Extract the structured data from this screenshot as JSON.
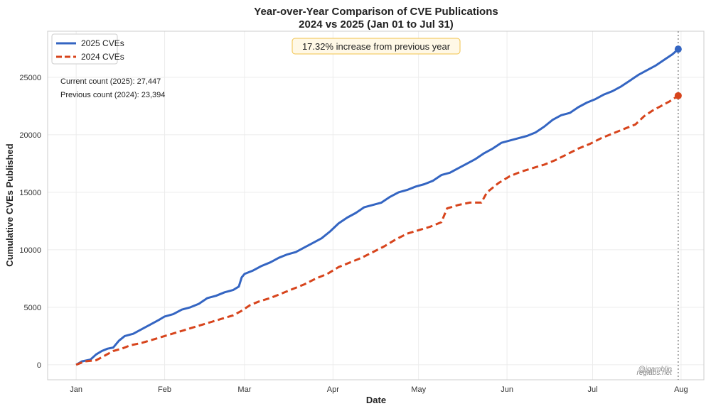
{
  "chart_data": {
    "type": "line",
    "title": "Year-over-Year Comparison of CVE Publications",
    "subtitle": "2024 vs 2025 (Jan 01 to Jul 31)",
    "xlabel": "Date",
    "ylabel": "Cumulative CVEs Published",
    "x_ticks": [
      {
        "label": "Jan",
        "date": "2025-01-01"
      },
      {
        "label": "Feb",
        "date": "2025-02-01"
      },
      {
        "label": "Mar",
        "date": "2025-03-01"
      },
      {
        "label": "Apr",
        "date": "2025-04-01"
      },
      {
        "label": "May",
        "date": "2025-05-01"
      },
      {
        "label": "Jun",
        "date": "2025-06-01"
      },
      {
        "label": "Jul",
        "date": "2025-07-01"
      },
      {
        "label": "Aug",
        "date": "2025-08-01"
      }
    ],
    "xlim": [
      "2024-12-22",
      "2025-08-09"
    ],
    "ylim": [
      -1300,
      29000
    ],
    "y_ticks": [
      0,
      5000,
      10000,
      15000,
      20000,
      25000
    ],
    "grid": true,
    "legend": "top-left",
    "vline_date": "2025-07-31",
    "series": [
      {
        "name": "2025 CVEs",
        "color": "#3465c2",
        "style": "solid",
        "points": [
          [
            "2025-01-01",
            0
          ],
          [
            "2025-01-03",
            300
          ],
          [
            "2025-01-06",
            450
          ],
          [
            "2025-01-08",
            900
          ],
          [
            "2025-01-10",
            1200
          ],
          [
            "2025-01-12",
            1400
          ],
          [
            "2025-01-14",
            1500
          ],
          [
            "2025-01-16",
            2100
          ],
          [
            "2025-01-18",
            2500
          ],
          [
            "2025-01-21",
            2700
          ],
          [
            "2025-01-24",
            3100
          ],
          [
            "2025-01-27",
            3500
          ],
          [
            "2025-01-30",
            3900
          ],
          [
            "2025-02-01",
            4200
          ],
          [
            "2025-02-04",
            4400
          ],
          [
            "2025-02-07",
            4800
          ],
          [
            "2025-02-10",
            5000
          ],
          [
            "2025-02-13",
            5300
          ],
          [
            "2025-02-16",
            5800
          ],
          [
            "2025-02-19",
            6000
          ],
          [
            "2025-02-22",
            6300
          ],
          [
            "2025-02-25",
            6500
          ],
          [
            "2025-02-27",
            6800
          ],
          [
            "2025-02-28",
            7600
          ],
          [
            "2025-03-01",
            7900
          ],
          [
            "2025-03-04",
            8200
          ],
          [
            "2025-03-07",
            8600
          ],
          [
            "2025-03-10",
            8900
          ],
          [
            "2025-03-13",
            9300
          ],
          [
            "2025-03-16",
            9600
          ],
          [
            "2025-03-19",
            9800
          ],
          [
            "2025-03-22",
            10200
          ],
          [
            "2025-03-25",
            10600
          ],
          [
            "2025-03-28",
            11000
          ],
          [
            "2025-03-31",
            11600
          ],
          [
            "2025-04-03",
            12300
          ],
          [
            "2025-04-06",
            12800
          ],
          [
            "2025-04-09",
            13200
          ],
          [
            "2025-04-12",
            13700
          ],
          [
            "2025-04-15",
            13900
          ],
          [
            "2025-04-18",
            14100
          ],
          [
            "2025-04-21",
            14600
          ],
          [
            "2025-04-24",
            15000
          ],
          [
            "2025-04-27",
            15200
          ],
          [
            "2025-04-30",
            15500
          ],
          [
            "2025-05-03",
            15700
          ],
          [
            "2025-05-06",
            16000
          ],
          [
            "2025-05-09",
            16500
          ],
          [
            "2025-05-12",
            16700
          ],
          [
            "2025-05-15",
            17100
          ],
          [
            "2025-05-18",
            17500
          ],
          [
            "2025-05-21",
            17900
          ],
          [
            "2025-05-24",
            18400
          ],
          [
            "2025-05-27",
            18800
          ],
          [
            "2025-05-30",
            19300
          ],
          [
            "2025-06-02",
            19500
          ],
          [
            "2025-06-05",
            19700
          ],
          [
            "2025-06-08",
            19900
          ],
          [
            "2025-06-11",
            20200
          ],
          [
            "2025-06-14",
            20700
          ],
          [
            "2025-06-17",
            21300
          ],
          [
            "2025-06-20",
            21700
          ],
          [
            "2025-06-23",
            21900
          ],
          [
            "2025-06-26",
            22400
          ],
          [
            "2025-06-29",
            22800
          ],
          [
            "2025-07-02",
            23100
          ],
          [
            "2025-07-05",
            23500
          ],
          [
            "2025-07-08",
            23800
          ],
          [
            "2025-07-11",
            24200
          ],
          [
            "2025-07-14",
            24700
          ],
          [
            "2025-07-17",
            25200
          ],
          [
            "2025-07-20",
            25600
          ],
          [
            "2025-07-23",
            26000
          ],
          [
            "2025-07-26",
            26500
          ],
          [
            "2025-07-29",
            27000
          ],
          [
            "2025-07-31",
            27447
          ]
        ],
        "end_value": 27447
      },
      {
        "name": "2024 CVEs",
        "color": "#d7441c",
        "style": "dashed",
        "points": [
          [
            "2025-01-01",
            0
          ],
          [
            "2025-01-04",
            300
          ],
          [
            "2025-01-08",
            400
          ],
          [
            "2025-01-11",
            800
          ],
          [
            "2025-01-14",
            1200
          ],
          [
            "2025-01-17",
            1400
          ],
          [
            "2025-01-20",
            1700
          ],
          [
            "2025-01-24",
            1900
          ],
          [
            "2025-01-28",
            2200
          ],
          [
            "2025-02-01",
            2500
          ],
          [
            "2025-02-05",
            2800
          ],
          [
            "2025-02-09",
            3100
          ],
          [
            "2025-02-13",
            3400
          ],
          [
            "2025-02-17",
            3700
          ],
          [
            "2025-02-21",
            4000
          ],
          [
            "2025-02-25",
            4300
          ],
          [
            "2025-02-28",
            4700
          ],
          [
            "2025-03-03",
            5200
          ],
          [
            "2025-03-06",
            5500
          ],
          [
            "2025-03-10",
            5800
          ],
          [
            "2025-03-14",
            6200
          ],
          [
            "2025-03-18",
            6600
          ],
          [
            "2025-03-22",
            7000
          ],
          [
            "2025-03-26",
            7500
          ],
          [
            "2025-03-30",
            7900
          ],
          [
            "2025-04-03",
            8500
          ],
          [
            "2025-04-07",
            8900
          ],
          [
            "2025-04-11",
            9300
          ],
          [
            "2025-04-15",
            9800
          ],
          [
            "2025-04-19",
            10300
          ],
          [
            "2025-04-23",
            10900
          ],
          [
            "2025-04-27",
            11400
          ],
          [
            "2025-05-01",
            11700
          ],
          [
            "2025-05-05",
            12000
          ],
          [
            "2025-05-09",
            12400
          ],
          [
            "2025-05-11",
            13600
          ],
          [
            "2025-05-15",
            13900
          ],
          [
            "2025-05-19",
            14100
          ],
          [
            "2025-05-23",
            14100
          ],
          [
            "2025-05-25",
            15000
          ],
          [
            "2025-05-29",
            15800
          ],
          [
            "2025-06-02",
            16400
          ],
          [
            "2025-06-06",
            16800
          ],
          [
            "2025-06-10",
            17100
          ],
          [
            "2025-06-14",
            17400
          ],
          [
            "2025-06-18",
            17800
          ],
          [
            "2025-06-22",
            18300
          ],
          [
            "2025-06-26",
            18800
          ],
          [
            "2025-06-30",
            19200
          ],
          [
            "2025-07-04",
            19700
          ],
          [
            "2025-07-08",
            20100
          ],
          [
            "2025-07-12",
            20500
          ],
          [
            "2025-07-16",
            20900
          ],
          [
            "2025-07-19",
            21600
          ],
          [
            "2025-07-22",
            22100
          ],
          [
            "2025-07-25",
            22500
          ],
          [
            "2025-07-28",
            22900
          ],
          [
            "2025-07-31",
            23394
          ]
        ],
        "end_value": 23394
      }
    ],
    "annotations": {
      "increase": "17.32% increase from previous year",
      "current_count": "Current count (2025): 27,447",
      "previous_count": "Previous count (2024): 23,394"
    }
  },
  "watermarks": {
    "line1": "@jgamblin",
    "line2": "reglabs.net"
  }
}
